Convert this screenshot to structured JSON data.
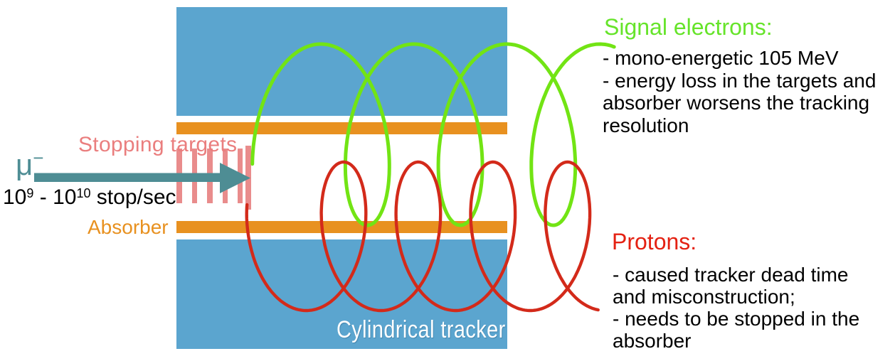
{
  "colors": {
    "tracker_blue": "#5BA5CF",
    "absorber_orange": "#E89120",
    "target_pink": "#E98C8C",
    "target_label_pink": "#EA7E7E",
    "beam_teal": "#4E8D94",
    "electron_green": "#72E414",
    "signal_title_green": "#66E42A",
    "proton_red": "#D32A1A",
    "proton_title_red": "#E42112",
    "text_black": "#000000",
    "tracker_label_white": "#FFFFFF"
  },
  "beam": {
    "particle": "μ",
    "charge": "−",
    "rate_base_1": "10",
    "rate_exp_1": "9",
    "rate_separator": " - ",
    "rate_base_2": "10",
    "rate_exp_2": "10",
    "rate_unit": " stop/sec"
  },
  "labels": {
    "stopping_targets": "Stopping targets",
    "absorber": "Absorber",
    "cylindrical_tracker": "Cylindrical tracker"
  },
  "signal_electrons": {
    "title": "Signal electrons:",
    "bullets": [
      "- mono-energetic 105 MeV",
      "- energy loss in the targets and absorber worsens the tracking resolution"
    ]
  },
  "protons": {
    "title": "Protons:",
    "bullets": [
      "- caused tracker dead time and misconstruction;",
      "- needs to be stopped in the absorber"
    ]
  }
}
